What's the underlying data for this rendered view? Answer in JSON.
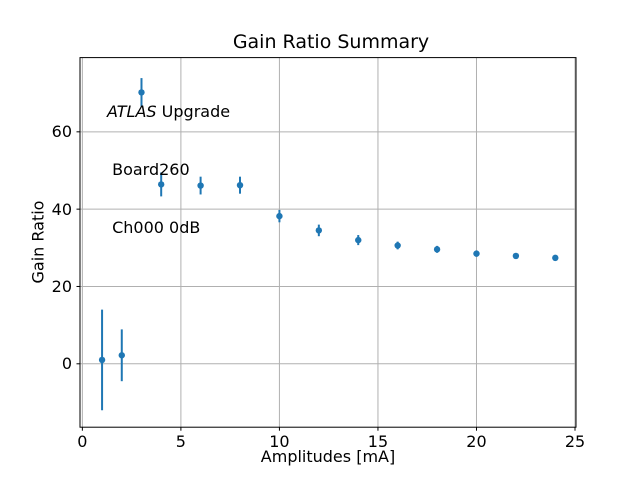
{
  "chart_data": {
    "type": "scatter",
    "title": "Gain Ratio Summary",
    "xlabel": "Amplitudes [mA]",
    "ylabel": "Gain Ratio",
    "annotation": {
      "line1_italic": "ATLAS",
      "line1_rest": " Upgrade",
      "line2": " Board260",
      "line3": " Ch000 0dB"
    },
    "x": [
      1,
      2,
      3,
      4,
      6,
      8,
      10,
      12,
      14,
      16,
      18,
      20,
      22,
      24
    ],
    "y": [
      1.0,
      2.2,
      70.2,
      46.4,
      46.1,
      46.2,
      38.2,
      34.5,
      32.0,
      30.6,
      29.6,
      28.5,
      27.9,
      27.4
    ],
    "yerr": [
      13.0,
      6.7,
      3.7,
      3.1,
      2.3,
      2.2,
      1.6,
      1.5,
      1.3,
      1.0,
      0.9,
      0.8,
      0.7,
      0.6
    ],
    "xticks": [
      0,
      5,
      10,
      15,
      20,
      25
    ],
    "yticks": [
      0,
      20,
      40,
      60
    ],
    "xlim": [
      -0.12,
      25.05
    ],
    "ylim": [
      -16.4,
      79.2
    ],
    "grid": true,
    "legend_position": "none",
    "marker_color": "#1f77b4",
    "grid_color": "#b0b0b0",
    "spine_color": "#000000",
    "text_color": "#000000"
  }
}
